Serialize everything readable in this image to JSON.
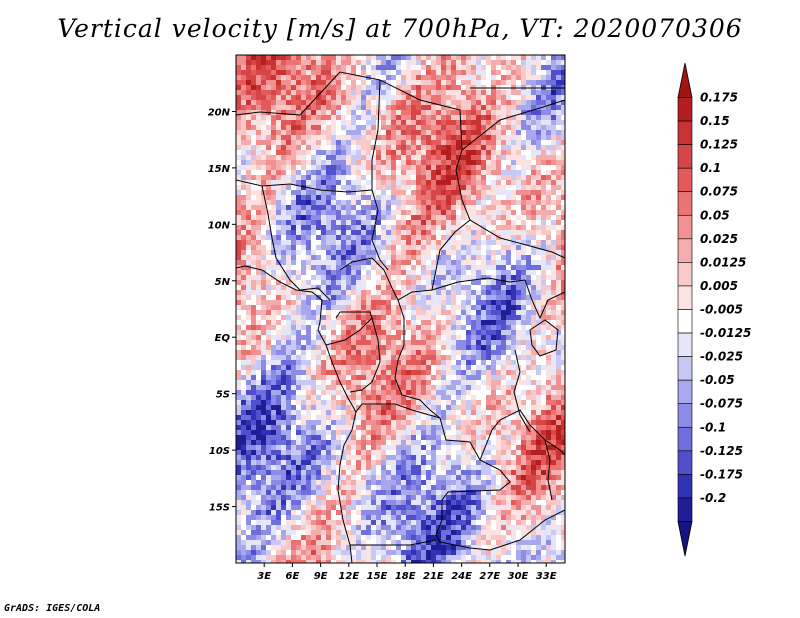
{
  "title": "Vertical velocity [m/s] at 700hPa, VT: 2020070306",
  "footer": "GrADS: IGES/COLA",
  "map": {
    "lon_range": [
      0,
      35
    ],
    "lat_range": [
      -20,
      25
    ],
    "lat_ticks": [
      {
        "value": 20,
        "label": "20N"
      },
      {
        "value": 15,
        "label": "15N"
      },
      {
        "value": 10,
        "label": "10N"
      },
      {
        "value": 5,
        "label": "5N"
      },
      {
        "value": 0,
        "label": "EQ"
      },
      {
        "value": -5,
        "label": "5S"
      },
      {
        "value": -10,
        "label": "10S"
      },
      {
        "value": -15,
        "label": "15S"
      }
    ],
    "lon_ticks": [
      {
        "value": 3,
        "label": "3E"
      },
      {
        "value": 6,
        "label": "6E"
      },
      {
        "value": 9,
        "label": "9E"
      },
      {
        "value": 12,
        "label": "12E"
      },
      {
        "value": 15,
        "label": "15E"
      },
      {
        "value": 18,
        "label": "18E"
      },
      {
        "value": 21,
        "label": "21E"
      },
      {
        "value": 24,
        "label": "24E"
      },
      {
        "value": 27,
        "label": "27E"
      },
      {
        "value": 30,
        "label": "30E"
      },
      {
        "value": 33,
        "label": "33E"
      }
    ]
  },
  "colorbar": {
    "levels": [
      {
        "label": "0.175",
        "color": "#b41e1e"
      },
      {
        "label": "0.15",
        "color": "#c83232"
      },
      {
        "label": "0.125",
        "color": "#d74646"
      },
      {
        "label": "0.1",
        "color": "#e25a5a"
      },
      {
        "label": "0.075",
        "color": "#ea7474"
      },
      {
        "label": "0.05",
        "color": "#f09090"
      },
      {
        "label": "0.025",
        "color": "#f5acac"
      },
      {
        "label": "0.0125",
        "color": "#f9c8c8"
      },
      {
        "label": "0.005",
        "color": "#fde2e2"
      },
      {
        "label": "-0.005",
        "color": "#ffffff"
      },
      {
        "label": "-0.0125",
        "color": "#e6e6fa"
      },
      {
        "label": "-0.025",
        "color": "#c8c8f4"
      },
      {
        "label": "-0.05",
        "color": "#a8a8ee"
      },
      {
        "label": "-0.075",
        "color": "#8c8ce6"
      },
      {
        "label": "-0.1",
        "color": "#6e6edc"
      },
      {
        "label": "-0.125",
        "color": "#5050cc"
      },
      {
        "label": "-0.175",
        "color": "#3232b4"
      },
      {
        "label": "-0.2",
        "color": "#1e1e96"
      }
    ],
    "top_color": "#a01414",
    "bottom_color": "#141482"
  }
}
